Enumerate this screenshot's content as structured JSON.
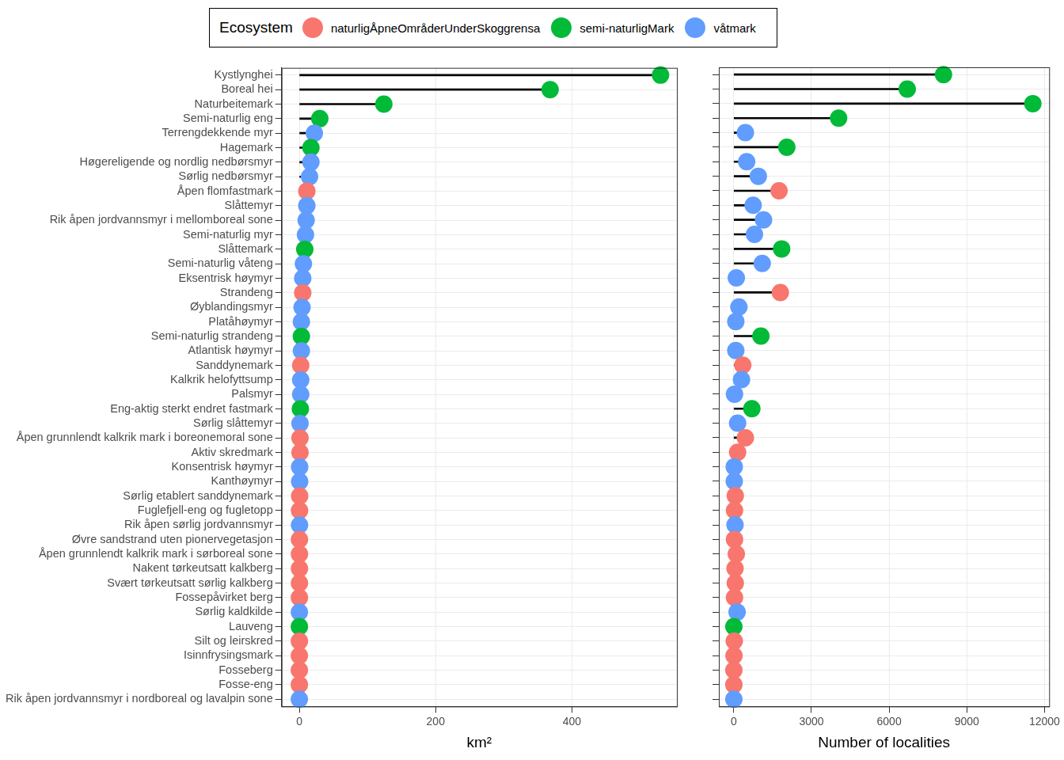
{
  "legend": {
    "title": "Ecosystem",
    "position": "top",
    "entries": [
      {
        "name": "naturligÅpneOmråderUnderSkoggrensa",
        "color": "#F8766D"
      },
      {
        "name": "semi-naturligMark",
        "color": "#00BA38"
      },
      {
        "name": "våtmark",
        "color": "#619CFF"
      }
    ]
  },
  "chart_data": [
    {
      "type": "lollipop",
      "orientation": "horizontal",
      "grid": true,
      "x_label": "km²",
      "xlim": [
        -26,
        554
      ],
      "xticks": [
        0,
        200,
        400
      ],
      "categories": [
        "Kystlynghei",
        "Boreal hei",
        "Naturbeitemark",
        "Semi-naturlig eng",
        "Terrengdekkende myr",
        "Hagemark",
        "Høgereligende og nordlig nedbørsmyr",
        "Sørlig nedbørsmyr",
        "Åpen flomfastmark",
        "Slåttemyr",
        "Rik åpen jordvannsmyr i mellomboreal sone",
        "Semi-naturlig myr",
        "Slåttemark",
        "Semi-naturlig våteng",
        "Eksentrisk høymyr",
        "Strandeng",
        "Øyblandingsmyr",
        "Platåhøymyr",
        "Semi-naturlig strandeng",
        "Atlantisk høymyr",
        "Sanddynemark",
        "Kalkrik helofyttsump",
        "Palsmyr",
        "Eng-aktig sterkt endret fastmark",
        "Sørlig slåttemyr",
        "Åpen grunnlendt kalkrik mark i boreonemoral sone",
        "Aktiv skredmark",
        "Konsentrisk høymyr",
        "Kanthøymyr",
        "Sørlig etablert sanddynemark",
        "Fuglefjell-eng og fugletopp",
        "Rik åpen sørlig jordvannsmyr",
        "Øvre sandstrand uten pionervegetasjon",
        "Åpen grunnlendt kalkrik mark i sørboreal sone",
        "Nakent tørkeutsatt kalkberg",
        "Svært tørkeutsatt sørlig kalkberg",
        "Fossepåvirket berg",
        "Sørlig kaldkilde",
        "Lauveng",
        "Silt og leirskred",
        "Isinnfrysingsmark",
        "Fosseberg",
        "Fosse-eng",
        "Rik åpen jordvannsmyr i nordboreal og lavalpin sone"
      ],
      "values": [
        530,
        368,
        124,
        30,
        22,
        17,
        17,
        15,
        11,
        11,
        10,
        9,
        8,
        6,
        5,
        5,
        4,
        3,
        3,
        3,
        2,
        2,
        2,
        1.5,
        1,
        1,
        1,
        0.5,
        0.5,
        0.5,
        0.3,
        0.3,
        0.2,
        0.2,
        0.2,
        0.2,
        0.1,
        0.1,
        0.1,
        0.1,
        0.05,
        0.05,
        0.05,
        0.05
      ],
      "colors": [
        "#00BA38",
        "#00BA38",
        "#00BA38",
        "#00BA38",
        "#619CFF",
        "#00BA38",
        "#619CFF",
        "#619CFF",
        "#F8766D",
        "#619CFF",
        "#619CFF",
        "#619CFF",
        "#00BA38",
        "#619CFF",
        "#619CFF",
        "#F8766D",
        "#619CFF",
        "#619CFF",
        "#00BA38",
        "#619CFF",
        "#F8766D",
        "#619CFF",
        "#619CFF",
        "#00BA38",
        "#619CFF",
        "#F8766D",
        "#F8766D",
        "#619CFF",
        "#619CFF",
        "#F8766D",
        "#F8766D",
        "#619CFF",
        "#F8766D",
        "#F8766D",
        "#F8766D",
        "#F8766D",
        "#F8766D",
        "#619CFF",
        "#00BA38",
        "#F8766D",
        "#F8766D",
        "#F8766D",
        "#F8766D",
        "#619CFF"
      ]
    },
    {
      "type": "lollipop",
      "orientation": "horizontal",
      "grid": true,
      "tick_labels": "x",
      "x_label": "Number of localities",
      "xlim": [
        -575,
        12180
      ],
      "xticks": [
        0,
        3000,
        6000,
        9000,
        12000
      ],
      "categories": [
        "Kystlynghei",
        "Boreal hei",
        "Naturbeitemark",
        "Semi-naturlig eng",
        "Terrengdekkende myr",
        "Hagemark",
        "Høgereligende og nordlig nedbørsmyr",
        "Sørlig nedbørsmyr",
        "Åpen flomfastmark",
        "Slåttemyr",
        "Rik åpen jordvannsmyr i mellomboreal sone",
        "Semi-naturlig myr",
        "Slåttemark",
        "Semi-naturlig våteng",
        "Eksentrisk høymyr",
        "Strandeng",
        "Øyblandingsmyr",
        "Platåhøymyr",
        "Semi-naturlig strandeng",
        "Atlantisk høymyr",
        "Sanddynemark",
        "Kalkrik helofyttsump",
        "Palsmyr",
        "Eng-aktig sterkt endret fastmark",
        "Sørlig slåttemyr",
        "Åpen grunnlendt kalkrik mark i boreonemoral sone",
        "Aktiv skredmark",
        "Konsentrisk høymyr",
        "Kanthøymyr",
        "Sørlig etablert sanddynemark",
        "Fuglefjell-eng og fugletopp",
        "Rik åpen sørlig jordvannsmyr",
        "Øvre sandstrand uten pionervegetasjon",
        "Åpen grunnlendt kalkrik mark i sørboreal sone",
        "Nakent tørkeutsatt kalkberg",
        "Svært tørkeutsatt sørlig kalkberg",
        "Fossepåvirket berg",
        "Sørlig kaldkilde",
        "Lauveng",
        "Silt og leirskred",
        "Isinnfrysingsmark",
        "Fosseberg",
        "Fosse-eng",
        "Rik åpen jordvannsmyr i nordboreal og lavalpin sone"
      ],
      "values": [
        8100,
        6700,
        11550,
        4050,
        450,
        2050,
        500,
        950,
        1750,
        750,
        1150,
        800,
        1850,
        1100,
        100,
        1800,
        200,
        80,
        1050,
        80,
        350,
        300,
        30,
        700,
        150,
        450,
        150,
        20,
        20,
        60,
        30,
        50,
        30,
        100,
        50,
        60,
        30,
        130,
        5,
        20,
        10,
        5,
        5,
        5
      ],
      "colors": [
        "#00BA38",
        "#00BA38",
        "#00BA38",
        "#00BA38",
        "#619CFF",
        "#00BA38",
        "#619CFF",
        "#619CFF",
        "#F8766D",
        "#619CFF",
        "#619CFF",
        "#619CFF",
        "#00BA38",
        "#619CFF",
        "#619CFF",
        "#F8766D",
        "#619CFF",
        "#619CFF",
        "#00BA38",
        "#619CFF",
        "#F8766D",
        "#619CFF",
        "#619CFF",
        "#00BA38",
        "#619CFF",
        "#F8766D",
        "#F8766D",
        "#619CFF",
        "#619CFF",
        "#F8766D",
        "#F8766D",
        "#619CFF",
        "#F8766D",
        "#F8766D",
        "#F8766D",
        "#F8766D",
        "#F8766D",
        "#619CFF",
        "#00BA38",
        "#F8766D",
        "#F8766D",
        "#F8766D",
        "#F8766D",
        "#619CFF"
      ]
    }
  ]
}
